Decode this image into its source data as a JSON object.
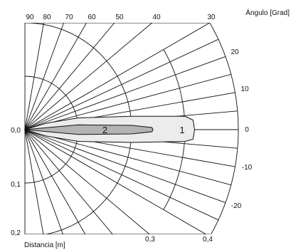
{
  "chart_data": {
    "type": "polar-beam-diagram",
    "title": "",
    "angle_axis_label": "Ángulo [Grad]",
    "distance_axis_label": "Distancia [m]",
    "angle_ticks_top": [
      "90",
      "80",
      "70",
      "60",
      "50",
      "40",
      "30"
    ],
    "angle_ticks_right": [
      "20",
      "10",
      "0",
      "-10",
      "-20"
    ],
    "distance_ticks_left": [
      "0,0",
      "0,1",
      "0,2"
    ],
    "distance_ticks_bottom": [
      "0,3",
      "0,4"
    ],
    "angle_range_deg": [
      -30,
      90
    ],
    "distance_range_m": [
      0,
      0.4
    ],
    "grid": true,
    "spoke_angles_deg": [
      90,
      80,
      70,
      60,
      50,
      40,
      30,
      25,
      20,
      15,
      10,
      5,
      0,
      -5,
      -10,
      -15,
      -20,
      -25,
      -30,
      -40,
      -50,
      -60,
      -70,
      -80,
      -90
    ],
    "arc_radii_m": [
      0.1,
      0.2,
      0.3,
      0.4
    ],
    "series": [
      {
        "name": "1",
        "color": "#ececec",
        "outline": [
          [
            0,
            0
          ],
          [
            0.04,
            0.012
          ],
          [
            0.1,
            0.022
          ],
          [
            0.2,
            0.025
          ],
          [
            0.3,
            0.025
          ],
          [
            0.315,
            0.018
          ],
          [
            0.318,
            0
          ],
          [
            0.315,
            -0.018
          ],
          [
            0.3,
            -0.022
          ],
          [
            0.2,
            -0.024
          ],
          [
            0.1,
            -0.022
          ],
          [
            0.04,
            -0.012
          ],
          [
            0,
            0
          ]
        ]
      },
      {
        "name": "2",
        "color": "#b3b3b3",
        "outline": [
          [
            0,
            0
          ],
          [
            0.1,
            0.009
          ],
          [
            0.2,
            0.008
          ],
          [
            0.238,
            0.004
          ],
          [
            0.24,
            0
          ],
          [
            0.238,
            -0.004
          ],
          [
            0.2,
            -0.008
          ],
          [
            0.1,
            -0.009
          ],
          [
            0,
            0
          ]
        ]
      }
    ]
  }
}
